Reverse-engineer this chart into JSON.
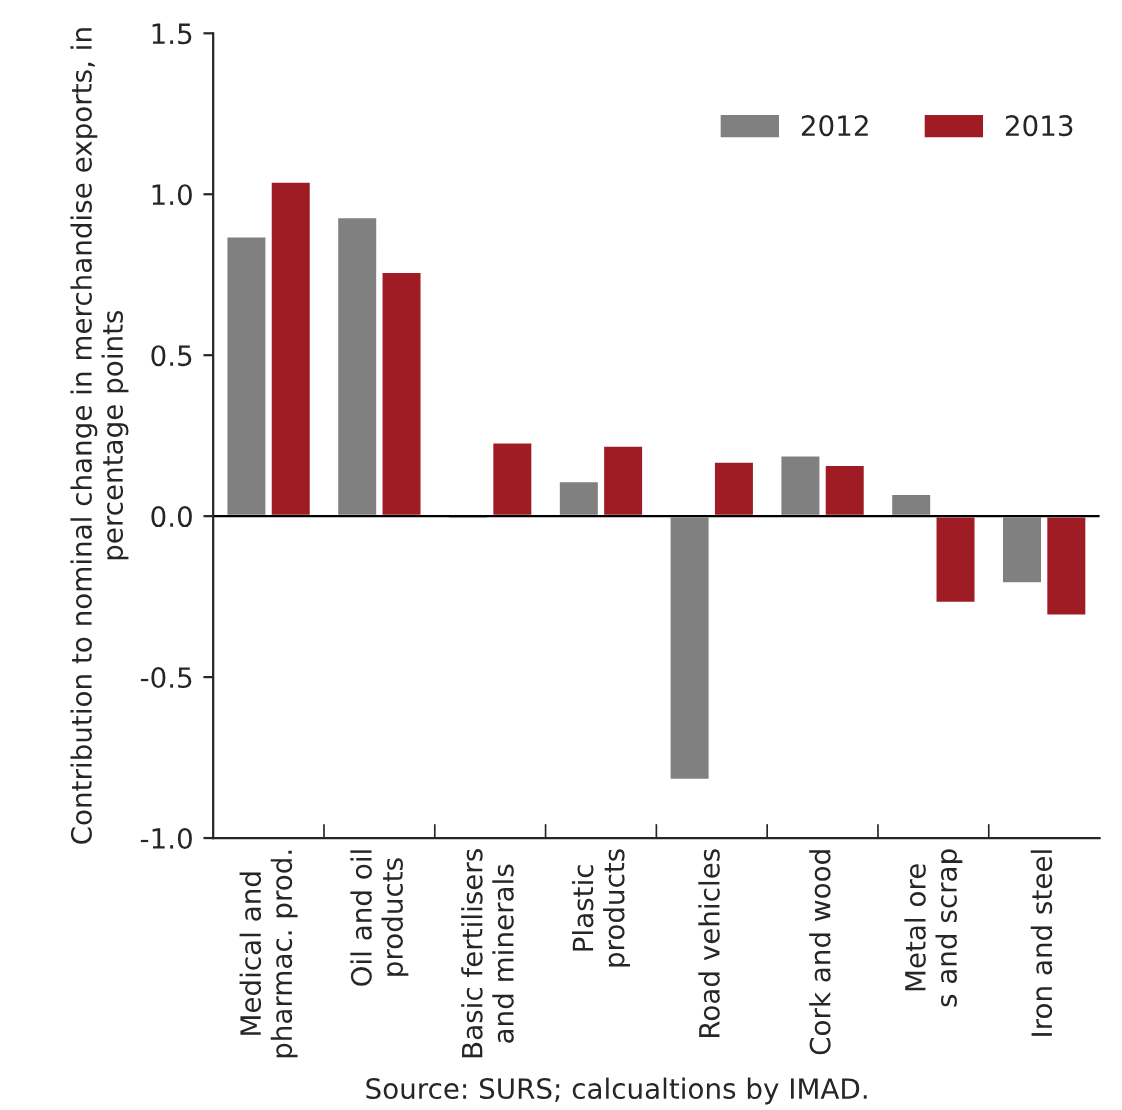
{
  "chart_data": {
    "type": "bar",
    "ylabel": "Contribution to nominal change in merchandise exports, in\npercentage points",
    "categories": [
      "Medical and\npharmac. prod.",
      "Oil and oil\nproducts",
      "Basic fertilisers\nand minerals",
      "Plastic\nproducts",
      "Road vehicles",
      "Cork and wood",
      "Metal ore\ns and scrap",
      "Iron and steel"
    ],
    "series": [
      {
        "name": "2012",
        "color": "#808080",
        "values": [
          0.87,
          0.93,
          -0.01,
          0.11,
          -0.82,
          0.19,
          0.07,
          -0.21
        ]
      },
      {
        "name": "2013",
        "color": "#a01c24",
        "values": [
          1.04,
          0.76,
          0.23,
          0.22,
          0.17,
          0.16,
          -0.27,
          -0.31
        ]
      }
    ],
    "ylim": [
      -1.0,
      1.5
    ],
    "yticks": [
      {
        "value": -1.0,
        "label": "-1.0"
      },
      {
        "value": -0.5,
        "label": "-0.5"
      },
      {
        "value": 0.0,
        "label": "0.0"
      },
      {
        "value": 0.5,
        "label": "0.5"
      },
      {
        "value": 1.0,
        "label": "1.0"
      },
      {
        "value": 1.5,
        "label": "1.5"
      }
    ],
    "ref_lines": [
      {
        "axis": "y",
        "value": 0,
        "color": "#000000"
      }
    ],
    "legend": "top right",
    "annotations": [
      "Source: SURS; calcualtions by IMAD."
    ]
  }
}
